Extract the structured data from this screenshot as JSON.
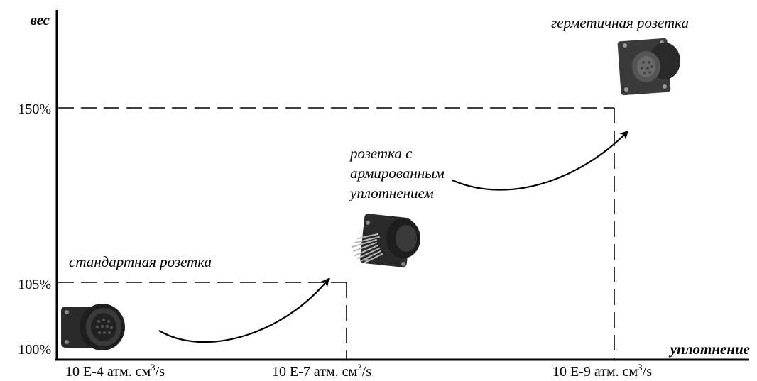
{
  "axes": {
    "y_title": "вес",
    "x_title": "уплотнение"
  },
  "y_ticks": [
    "150%",
    "105%",
    "100%"
  ],
  "x_ticks": [
    {
      "main": "10 E-4 атм. см",
      "sup": "3",
      "tail": "/s"
    },
    {
      "main": "10 E-7 атм. см",
      "sup": "3",
      "tail": "/s"
    },
    {
      "main": "10 E-9 атм. см",
      "sup": "3",
      "tail": "/s"
    }
  ],
  "items": [
    {
      "lines": [
        "стандартная розетка"
      ],
      "icon": "standard-connector-icon"
    },
    {
      "lines": [
        "розетка с",
        "армированным",
        "уплотнением"
      ],
      "icon": "reinforced-seal-connector-icon"
    },
    {
      "lines": [
        "герметичная розетка"
      ],
      "icon": "hermetic-connector-icon"
    }
  ],
  "colors": {
    "line": "#000000",
    "connector_body": "#2a2a2a",
    "connector_light": "#6a6a6a",
    "pins": "#b8b8b8"
  }
}
